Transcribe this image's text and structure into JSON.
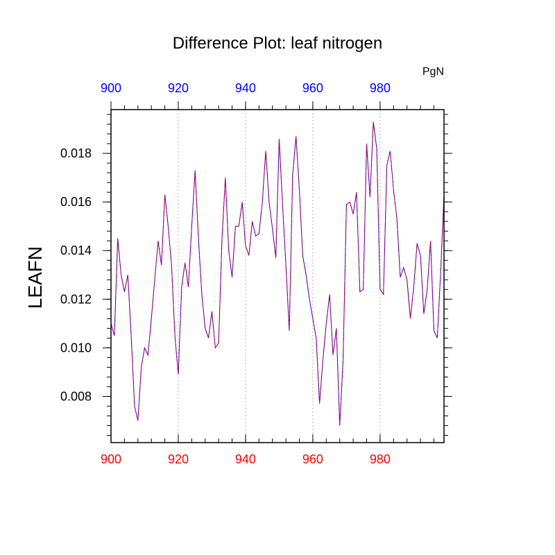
{
  "chart_data": {
    "type": "line",
    "title": "Difference Plot: leaf nitrogen",
    "units": "PgN",
    "ylabel": "LEAFN",
    "xlabel": "",
    "xlim": [
      900,
      999
    ],
    "ylim": [
      0.0061,
      0.0198
    ],
    "bottom_x_ticks": [
      "900",
      "920",
      "940",
      "960",
      "980"
    ],
    "top_x_ticks": [
      "900",
      "920",
      "940",
      "960",
      "980"
    ],
    "y_ticks": [
      "0.008",
      "0.010",
      "0.012",
      "0.014",
      "0.016",
      "0.018"
    ],
    "grid": "vertical dotted lines at major x ticks",
    "colors": {
      "bottom_axis_labels": "#ff0000",
      "top_axis_labels": "#0000ff",
      "series_primary": "#0000ff",
      "series_overlay": "#ff0000"
    },
    "series": [
      {
        "x": [
          900,
          901,
          902,
          903,
          904,
          905,
          906,
          907,
          908,
          909,
          910,
          911,
          912,
          913,
          914,
          915,
          916,
          917,
          918,
          919,
          920,
          921,
          922,
          923,
          924,
          925,
          926,
          927,
          928,
          929,
          930,
          931,
          932,
          933,
          934,
          935,
          936,
          937,
          938,
          939,
          940,
          941,
          942,
          943,
          944,
          945,
          946,
          947,
          948,
          949,
          950,
          951,
          952,
          953,
          954,
          955,
          956,
          957,
          958,
          959,
          960,
          961,
          962,
          963,
          964,
          965,
          966,
          967,
          968,
          969,
          970,
          971,
          972,
          973,
          974,
          975,
          976,
          977,
          978,
          979,
          980,
          981,
          982,
          983,
          984,
          985,
          986,
          987,
          988,
          989,
          990,
          991,
          992,
          993,
          994,
          995,
          996,
          997,
          998,
          999
        ],
        "values": [
          0.011,
          0.0105,
          0.0145,
          0.013,
          0.0123,
          0.013,
          0.0105,
          0.0076,
          0.007,
          0.0092,
          0.01,
          0.0097,
          0.0112,
          0.0128,
          0.0144,
          0.0134,
          0.0163,
          0.015,
          0.0134,
          0.0105,
          0.0089,
          0.0125,
          0.0135,
          0.0125,
          0.015,
          0.0173,
          0.0145,
          0.0122,
          0.0108,
          0.0104,
          0.0115,
          0.01,
          0.0102,
          0.0145,
          0.017,
          0.014,
          0.0129,
          0.015,
          0.015,
          0.016,
          0.0142,
          0.0138,
          0.0152,
          0.0146,
          0.0147,
          0.016,
          0.0181,
          0.016,
          0.0149,
          0.0137,
          0.0186,
          0.0159,
          0.0134,
          0.0107,
          0.0171,
          0.0187,
          0.0165,
          0.0138,
          0.013,
          0.012,
          0.0112,
          0.0104,
          0.0077,
          0.0095,
          0.011,
          0.0122,
          0.0097,
          0.0108,
          0.0068,
          0.0095,
          0.0159,
          0.016,
          0.0155,
          0.0164,
          0.0123,
          0.0124,
          0.0184,
          0.0162,
          0.0193,
          0.0182,
          0.0124,
          0.0122,
          0.0175,
          0.0181,
          0.0165,
          0.0153,
          0.0129,
          0.0133,
          0.0128,
          0.0112,
          0.0125,
          0.0143,
          0.0138,
          0.0114,
          0.0124,
          0.0144,
          0.0107,
          0.0104,
          0.0131,
          0.0163
        ]
      }
    ]
  }
}
